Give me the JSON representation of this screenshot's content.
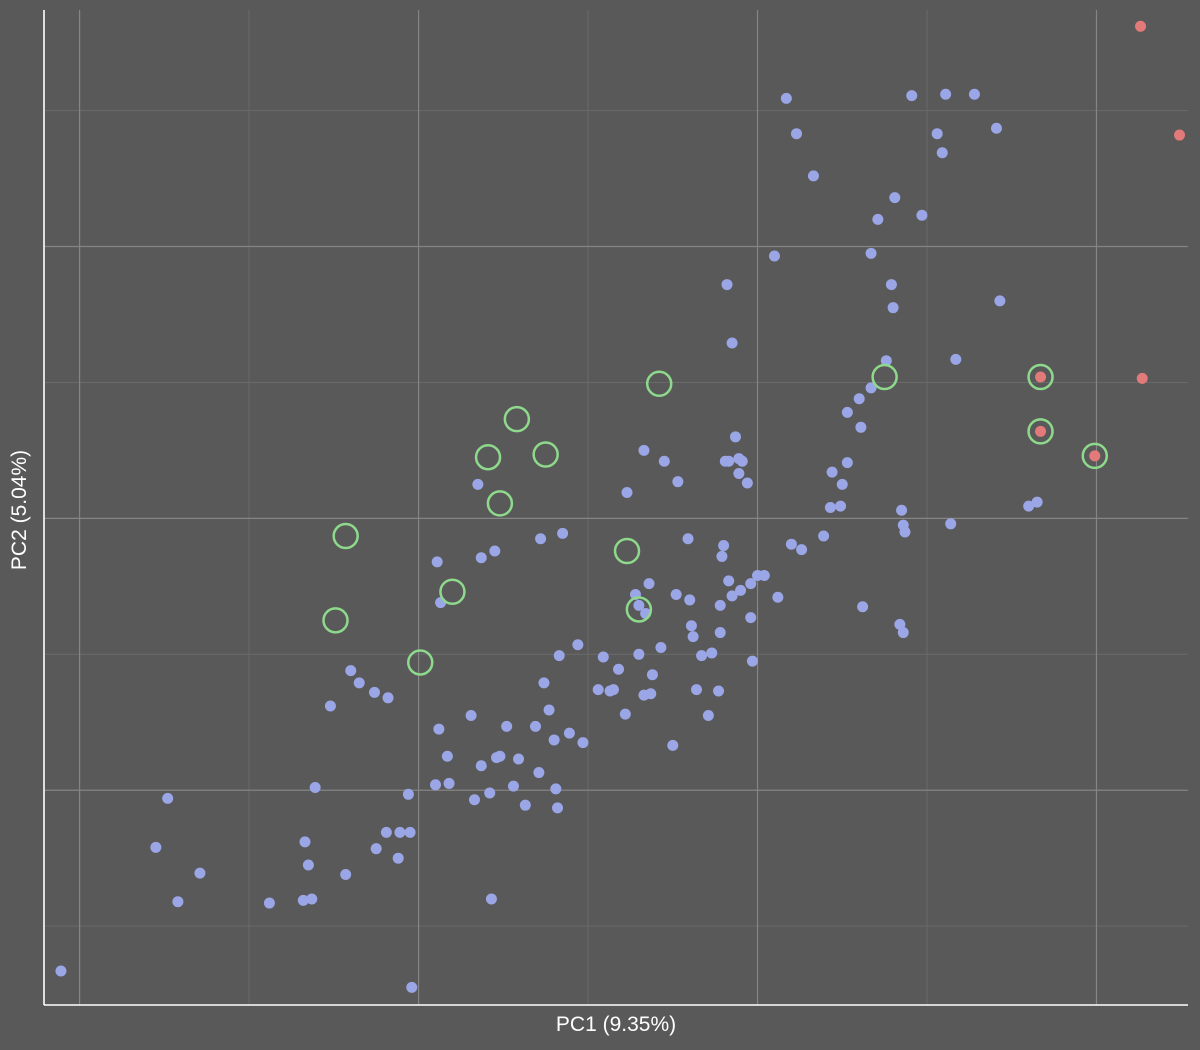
{
  "chart_data": {
    "type": "scatter",
    "xlabel": "PC1 (9.35%)",
    "ylabel": "PC2 (5.04%)",
    "xlim": [
      -1.21,
      5.54
    ],
    "ylim": [
      -4.58,
      2.74
    ],
    "grid": true,
    "x_major_ticks": [
      -1,
      1,
      3,
      5
    ],
    "x_minor_ticks": [
      0,
      2,
      4
    ],
    "y_major_ticks": [
      -3,
      -1,
      1
    ],
    "y_minor_ticks": [
      -4,
      -2,
      0,
      2
    ],
    "colors": {
      "background": "#595959",
      "group_1": "#9aa6e6",
      "group_2": "#e27a7a",
      "highlight_ring": "#8ed98c"
    },
    "series": [
      {
        "color": "#9aa6e6",
        "points": [
          [
            -1.11,
            -4.33
          ],
          [
            -0.48,
            -3.06
          ],
          [
            -0.55,
            -3.42
          ],
          [
            -0.42,
            -3.82
          ],
          [
            -0.29,
            -3.61
          ],
          [
            0.12,
            -3.83
          ],
          [
            0.33,
            -3.38
          ],
          [
            0.35,
            -3.55
          ],
          [
            0.37,
            -3.8
          ],
          [
            0.32,
            -3.81
          ],
          [
            0.39,
            -2.98
          ],
          [
            0.48,
            -2.38
          ],
          [
            0.57,
            -3.62
          ],
          [
            0.6,
            -2.12
          ],
          [
            0.65,
            -2.21
          ],
          [
            0.82,
            -2.32
          ],
          [
            0.74,
            -2.28
          ],
          [
            0.75,
            -3.43
          ],
          [
            0.81,
            -3.31
          ],
          [
            0.89,
            -3.31
          ],
          [
            0.88,
            -3.5
          ],
          [
            0.95,
            -3.31
          ],
          [
            0.94,
            -3.03
          ],
          [
            0.96,
            -4.45
          ],
          [
            1.12,
            -2.55
          ],
          [
            1.17,
            -2.75
          ],
          [
            1.1,
            -2.96
          ],
          [
            1.13,
            -1.62
          ],
          [
            1.18,
            -2.95
          ],
          [
            1.11,
            -1.32
          ],
          [
            1.31,
            -2.45
          ],
          [
            1.33,
            -3.07
          ],
          [
            1.37,
            -2.82
          ],
          [
            1.35,
            -0.75
          ],
          [
            1.37,
            -1.29
          ],
          [
            1.45,
            -1.24
          ],
          [
            1.48,
            -2.75
          ],
          [
            1.42,
            -3.02
          ],
          [
            1.46,
            -2.76
          ],
          [
            1.52,
            -2.53
          ],
          [
            1.43,
            -3.8
          ],
          [
            1.56,
            -2.97
          ],
          [
            1.59,
            -2.77
          ],
          [
            1.63,
            -3.11
          ],
          [
            1.69,
            -2.53
          ],
          [
            1.72,
            -1.15
          ],
          [
            1.71,
            -2.87
          ],
          [
            1.74,
            -2.21
          ],
          [
            1.77,
            -2.41
          ],
          [
            1.8,
            -2.63
          ],
          [
            1.82,
            -3.13
          ],
          [
            1.81,
            -2.99
          ],
          [
            1.85,
            -1.11
          ],
          [
            1.89,
            -2.58
          ],
          [
            1.83,
            -2.01
          ],
          [
            1.94,
            -1.93
          ],
          [
            1.97,
            -2.65
          ],
          [
            2.06,
            -2.26
          ],
          [
            2.09,
            -2.02
          ],
          [
            2.13,
            -2.27
          ],
          [
            2.15,
            -2.26
          ],
          [
            2.18,
            -2.11
          ],
          [
            2.22,
            -2.44
          ],
          [
            2.3,
            -2.0
          ],
          [
            2.33,
            -2.3
          ],
          [
            2.23,
            -0.81
          ],
          [
            2.28,
            -1.56
          ],
          [
            2.3,
            -1.64
          ],
          [
            2.36,
            -1.48
          ],
          [
            2.34,
            -1.7
          ],
          [
            2.38,
            -2.15
          ],
          [
            2.43,
            -1.95
          ],
          [
            2.37,
            -2.29
          ],
          [
            2.33,
            -0.5
          ],
          [
            2.5,
            -2.67
          ],
          [
            2.45,
            -0.58
          ],
          [
            2.52,
            -1.56
          ],
          [
            2.53,
            -0.73
          ],
          [
            2.59,
            -1.15
          ],
          [
            2.61,
            -1.79
          ],
          [
            2.6,
            -1.6
          ],
          [
            2.62,
            -1.87
          ],
          [
            2.64,
            -2.26
          ],
          [
            2.67,
            -2.01
          ],
          [
            2.71,
            -2.45
          ],
          [
            2.73,
            -1.99
          ],
          [
            2.78,
            -1.64
          ],
          [
            2.77,
            -2.27
          ],
          [
            2.8,
            -1.2
          ],
          [
            2.78,
            -1.84
          ],
          [
            2.79,
            -1.28
          ],
          [
            2.85,
            -1.57
          ],
          [
            2.83,
            -1.46
          ],
          [
            2.9,
            -1.53
          ],
          [
            2.87,
            -0.4
          ],
          [
            2.89,
            -0.56
          ],
          [
            2.94,
            -0.74
          ],
          [
            2.83,
            -0.58
          ],
          [
            2.91,
            -0.58
          ],
          [
            2.89,
            -0.67
          ],
          [
            2.81,
            -0.58
          ],
          [
            2.97,
            -2.05
          ],
          [
            2.96,
            -1.73
          ],
          [
            3.04,
            -1.42
          ],
          [
            2.96,
            -1.48
          ],
          [
            2.82,
            0.72
          ],
          [
            2.85,
            0.29
          ],
          [
            3.0,
            -1.42
          ],
          [
            3.1,
            0.93
          ],
          [
            3.12,
            -1.58
          ],
          [
            3.2,
            -1.19
          ],
          [
            3.26,
            -1.23
          ],
          [
            3.39,
            -1.13
          ],
          [
            3.23,
            1.83
          ],
          [
            3.17,
            2.09
          ],
          [
            3.33,
            1.52
          ],
          [
            3.43,
            -0.92
          ],
          [
            3.44,
            -0.66
          ],
          [
            3.53,
            -0.59
          ],
          [
            3.49,
            -0.91
          ],
          [
            3.5,
            -0.75
          ],
          [
            3.6,
            -0.12
          ],
          [
            3.62,
            -1.65
          ],
          [
            3.53,
            -0.22
          ],
          [
            3.61,
            -0.33
          ],
          [
            3.79,
            0.72
          ],
          [
            3.76,
            0.16
          ],
          [
            3.81,
            1.36
          ],
          [
            3.8,
            0.55
          ],
          [
            3.87,
            -1.1
          ],
          [
            3.84,
            -1.78
          ],
          [
            3.85,
            -0.94
          ],
          [
            3.86,
            -1.84
          ],
          [
            3.86,
            -1.05
          ],
          [
            3.91,
            2.11
          ],
          [
            3.97,
            1.23
          ],
          [
            4.11,
            2.12
          ],
          [
            4.06,
            1.83
          ],
          [
            4.09,
            1.69
          ],
          [
            4.17,
            0.17
          ],
          [
            4.14,
            -1.04
          ],
          [
            4.6,
            -0.91
          ],
          [
            4.41,
            1.87
          ],
          [
            4.28,
            2.12
          ],
          [
            4.43,
            0.6
          ],
          [
            4.65,
            -0.88
          ],
          [
            3.67,
            -0.04
          ],
          [
            3.71,
            1.2
          ],
          [
            3.67,
            0.95
          ]
        ]
      },
      {
        "color": "#e27a7a",
        "points": [
          [
            5.26,
            2.62
          ],
          [
            5.49,
            1.82
          ],
          [
            5.27,
            0.03
          ],
          [
            4.67,
            0.04
          ],
          [
            4.67,
            -0.36
          ],
          [
            4.99,
            -0.54
          ]
        ]
      }
    ],
    "highlighted": [
      [
        0.57,
        -1.13
      ],
      [
        0.51,
        -1.75
      ],
      [
        1.2,
        -1.54
      ],
      [
        1.01,
        -2.06
      ],
      [
        1.58,
        -0.27
      ],
      [
        1.41,
        -0.55
      ],
      [
        1.48,
        -0.89
      ],
      [
        1.75,
        -0.53
      ],
      [
        2.42,
        -0.01
      ],
      [
        2.23,
        -1.24
      ],
      [
        2.3,
        -1.67
      ],
      [
        3.75,
        0.04
      ],
      [
        4.67,
        0.04
      ],
      [
        4.67,
        -0.36
      ],
      [
        4.99,
        -0.54
      ]
    ]
  }
}
